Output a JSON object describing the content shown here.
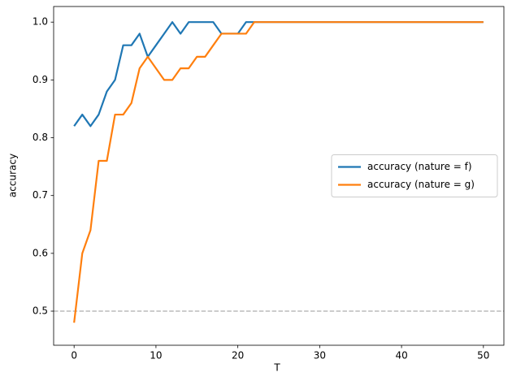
{
  "chart_data": {
    "type": "line",
    "xlabel": "T",
    "ylabel": "accuracy",
    "x": [
      0,
      1,
      2,
      3,
      4,
      5,
      6,
      7,
      8,
      9,
      10,
      11,
      12,
      13,
      14,
      15,
      16,
      17,
      18,
      19,
      20,
      21,
      22,
      23,
      24,
      25,
      26,
      27,
      28,
      29,
      30,
      31,
      32,
      33,
      34,
      35,
      36,
      37,
      38,
      39,
      40,
      41,
      42,
      43,
      44,
      45,
      46,
      47,
      48,
      49,
      50
    ],
    "series": [
      {
        "name": "accuracy (nature = f)",
        "color": "#1f77b4",
        "values": [
          0.82,
          0.84,
          0.82,
          0.84,
          0.88,
          0.9,
          0.96,
          0.96,
          0.98,
          0.94,
          0.96,
          0.98,
          1,
          0.98,
          1,
          1,
          1,
          1,
          0.98,
          0.98,
          0.98,
          1,
          1,
          1,
          1,
          1,
          1,
          1,
          1,
          1,
          1,
          1,
          1,
          1,
          1,
          1,
          1,
          1,
          1,
          1,
          1,
          1,
          1,
          1,
          1,
          1,
          1,
          1,
          1,
          1,
          1
        ]
      },
      {
        "name": "accuracy (nature = g)",
        "color": "#ff7f0e",
        "values": [
          0.48,
          0.6,
          0.64,
          0.76,
          0.76,
          0.84,
          0.84,
          0.86,
          0.92,
          0.94,
          0.92,
          0.9,
          0.9,
          0.92,
          0.92,
          0.94,
          0.94,
          0.96,
          0.98,
          0.98,
          0.98,
          0.98,
          1,
          1,
          1,
          1,
          1,
          1,
          1,
          1,
          1,
          1,
          1,
          1,
          1,
          1,
          1,
          1,
          1,
          1,
          1,
          1,
          1,
          1,
          1,
          1,
          1,
          1,
          1,
          1,
          1
        ]
      }
    ],
    "hline": 0.5,
    "hline_color": "#bbbbbb",
    "xlim": [
      -2.5,
      52.5
    ],
    "xticks": [
      0,
      10,
      20,
      30,
      40,
      50
    ],
    "ylim": [
      0.441,
      1.027
    ],
    "yticks": [
      0.5,
      0.6,
      0.7,
      0.8,
      0.9,
      {
        "value": 1,
        "label": "1.0"
      }
    ],
    "legend": "center right"
  }
}
